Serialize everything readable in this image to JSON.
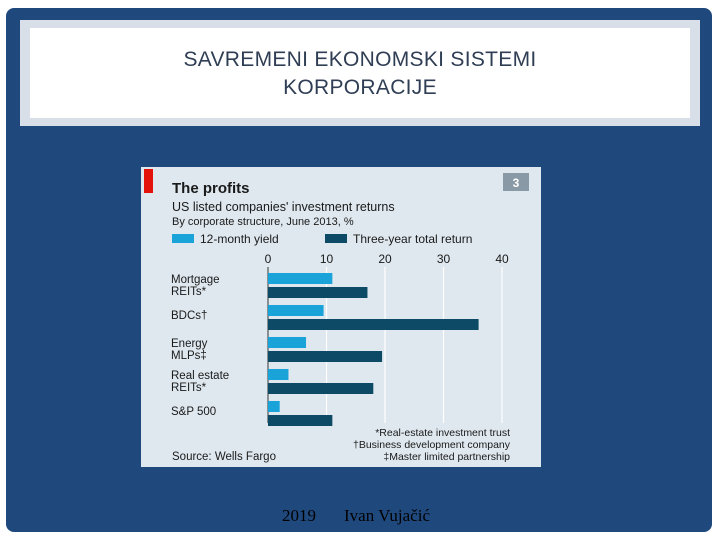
{
  "slide": {
    "title_line1": "SAVREMENI EKONOMSKI SISTEMI",
    "title_line2": "KORPORACIJE",
    "footer_year": "2019",
    "footer_author": "Ivan Vujačić"
  },
  "colors": {
    "slide_bg": "#1f497d",
    "series_yield": "#1aa3d9",
    "series_total": "#0d4a66",
    "brand_red": "#e3120b"
  },
  "chart_data": {
    "type": "bar",
    "orientation": "horizontal",
    "badge": "3",
    "title": "The profits",
    "subtitle": "US listed companies' investment returns",
    "subtitle2": "By corporate structure, June 2013, %",
    "categories": [
      [
        "Mortgage",
        "REITs*"
      ],
      [
        "BDCs†"
      ],
      [
        "Energy",
        "MLPs‡"
      ],
      [
        "Real estate",
        "REITs*"
      ],
      [
        "S&P 500"
      ]
    ],
    "series": [
      {
        "name": "12-month yield",
        "values": [
          11,
          9.5,
          6.5,
          3.5,
          2
        ]
      },
      {
        "name": "Three-year total return",
        "values": [
          17,
          36,
          19.5,
          18,
          11
        ]
      }
    ],
    "xlim": [
      0,
      40
    ],
    "xticks": [
      "0",
      "10",
      "20",
      "30",
      "40"
    ],
    "grid": true,
    "legend_position": "top",
    "footnotes": [
      "*Real-estate investment trust",
      "†Business development company",
      "‡Master limited partnership"
    ],
    "source": "Source: Wells Fargo"
  }
}
